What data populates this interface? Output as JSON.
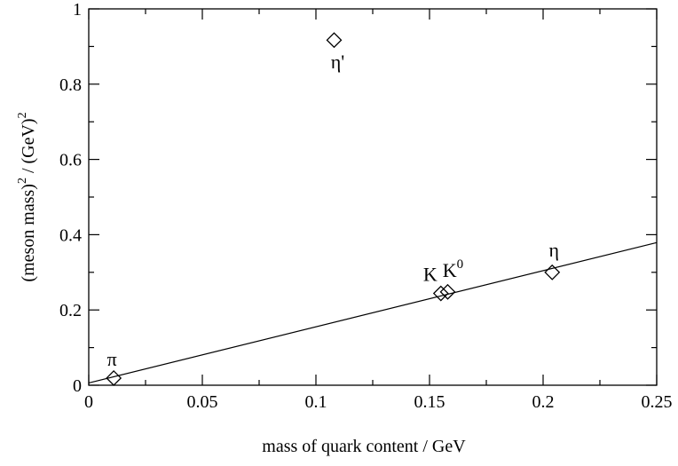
{
  "chart_data": {
    "type": "scatter",
    "title": "",
    "xlabel": "mass of quark content / GeV",
    "ylabel_parts": {
      "a": "(meson mass)",
      "sup1": "2",
      "b": " / (GeV)",
      "sup2": "2"
    },
    "xlim": [
      0,
      0.25
    ],
    "ylim": [
      0,
      1
    ],
    "x_ticks": [
      0,
      0.05,
      0.1,
      0.15,
      0.2,
      0.25
    ],
    "x_tick_labels": [
      "0",
      "0.05",
      "0.1",
      "0.15",
      "0.2",
      "0.25"
    ],
    "y_ticks": [
      0,
      0.2,
      0.4,
      0.6,
      0.8,
      1
    ],
    "y_tick_labels": [
      "0",
      "0.2",
      "0.4",
      "0.6",
      "0.8",
      "1"
    ],
    "grid": false,
    "points": [
      {
        "label": "π",
        "sup": "",
        "x": 0.011,
        "y": 0.019
      },
      {
        "label": "K",
        "sup": "",
        "x": 0.155,
        "y": 0.244
      },
      {
        "label": "K",
        "sup": "0",
        "x": 0.158,
        "y": 0.248
      },
      {
        "label": "η",
        "sup": "",
        "x": 0.204,
        "y": 0.3
      },
      {
        "label": "η'",
        "sup": "",
        "x": 0.108,
        "y": 0.917
      }
    ],
    "fit_line": {
      "x": [
        0,
        0.25
      ],
      "y": [
        0.006,
        0.379
      ]
    }
  }
}
